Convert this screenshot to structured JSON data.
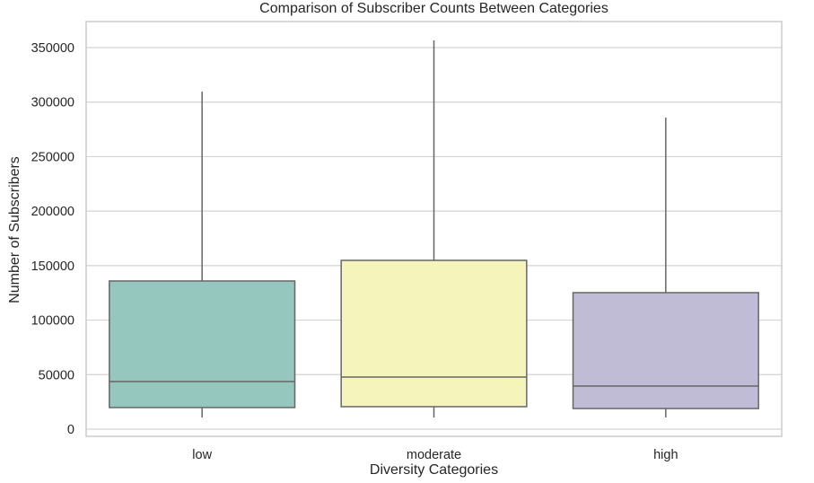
{
  "chart_data": {
    "type": "box",
    "title": "Comparison of Subscriber Counts Between Categories",
    "xlabel": "Diversity Categories",
    "ylabel": "Number of Subscribers",
    "categories": [
      "low",
      "moderate",
      "high"
    ],
    "ylim": [
      -7000,
      382000
    ],
    "yticks": [
      0,
      50000,
      100000,
      150000,
      200000,
      250000,
      300000,
      350000
    ],
    "ytick_labels": [
      "0",
      "50000",
      "100000",
      "150000",
      "200000",
      "250000",
      "300000",
      "350000"
    ],
    "grid": true,
    "series": [
      {
        "name": "low",
        "whisker_low": 10700,
        "q1": 19800,
        "median": 43600,
        "q3": 135900,
        "whisker_high": 309600,
        "color": "#95c7be"
      },
      {
        "name": "moderate",
        "whisker_low": 10700,
        "q1": 20600,
        "median": 47800,
        "q3": 154800,
        "whisker_high": 356600,
        "color": "#f5f4bb"
      },
      {
        "name": "high",
        "whisker_low": 10700,
        "q1": 18900,
        "median": 39500,
        "q3": 125200,
        "whisker_high": 285800,
        "color": "#c0bcd6"
      }
    ],
    "colors": {
      "grid": "#d3d3d3",
      "frame": "#cccccc",
      "box_edge": "#666666"
    }
  }
}
